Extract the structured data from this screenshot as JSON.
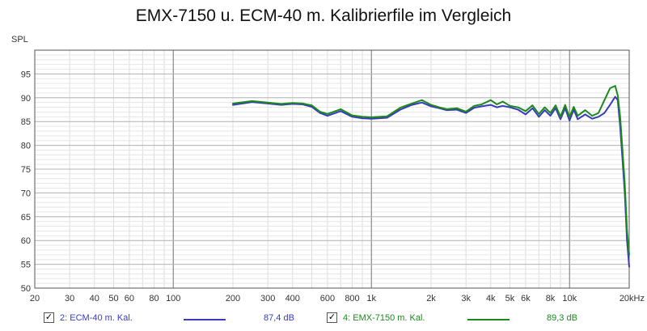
{
  "title": "EMX-7150 u. ECM-40 m. Kalibrierfile im Vergleich",
  "chart_data": {
    "type": "line",
    "title": "EMX-7150 u. ECM-40 m. Kalibrierfile im Vergleich",
    "xlabel": "",
    "ylabel": "SPL",
    "x_scale": "log",
    "xlim": [
      20,
      20000
    ],
    "ylim": [
      50,
      100
    ],
    "grid": true,
    "legend_position": "bottom",
    "x_ticks": [
      20,
      30,
      40,
      50,
      60,
      80,
      100,
      200,
      300,
      400,
      600,
      800,
      1000,
      2000,
      3000,
      4000,
      5000,
      6000,
      8000,
      10000,
      20000
    ],
    "x_tick_labels": [
      "20",
      "30",
      "40",
      "50",
      "60",
      "80",
      "100",
      "200",
      "300",
      "400",
      "600",
      "800",
      "1k",
      "2k",
      "3k",
      "4k",
      "5k",
      "6k",
      "8k",
      "10k",
      "20kHz"
    ],
    "y_ticks": [
      50,
      55,
      60,
      65,
      70,
      75,
      80,
      85,
      90,
      95
    ],
    "y_tick_labels": [
      "50",
      "55",
      "60",
      "65",
      "70",
      "75",
      "80",
      "85",
      "90",
      "95"
    ],
    "series": [
      {
        "name": "2: ECM-40 m. Kal.",
        "legend_label": "2: ECM-40 m. Kal.",
        "value_label": "87,4 dB",
        "color": "#3a3ac0",
        "x": [
          200,
          250,
          300,
          350,
          400,
          450,
          500,
          550,
          600,
          700,
          800,
          900,
          1000,
          1200,
          1400,
          1600,
          1800,
          2000,
          2200,
          2400,
          2700,
          3000,
          3300,
          3600,
          4000,
          4300,
          4600,
          5000,
          5500,
          6000,
          6500,
          7000,
          7500,
          8000,
          8500,
          9000,
          9500,
          10000,
          10500,
          11000,
          12000,
          13000,
          14000,
          15000,
          16000,
          17000,
          17500,
          18000,
          18500,
          19000,
          19500,
          20000
        ],
        "y": [
          88.5,
          89.1,
          88.8,
          88.5,
          88.7,
          88.6,
          88.1,
          86.8,
          86.2,
          87.2,
          86.0,
          85.7,
          85.6,
          85.8,
          87.5,
          88.5,
          89.0,
          88.2,
          87.8,
          87.4,
          87.5,
          86.8,
          87.9,
          88.2,
          88.5,
          88.0,
          88.3,
          88.0,
          87.5,
          86.5,
          87.8,
          86.0,
          87.4,
          86.2,
          87.8,
          85.5,
          87.8,
          85.2,
          87.5,
          85.5,
          86.5,
          85.6,
          86.0,
          86.8,
          88.5,
          90.2,
          89.5,
          84.0,
          77.0,
          70.0,
          60.0,
          54.5
        ]
      },
      {
        "name": "4: EMX-7150 m. Kal.",
        "legend_label": "4: EMX-7150 m. Kal.",
        "value_label": "89,3 dB",
        "color": "#1a8a1a",
        "x": [
          200,
          250,
          300,
          350,
          400,
          450,
          500,
          550,
          600,
          700,
          800,
          900,
          1000,
          1200,
          1400,
          1600,
          1800,
          2000,
          2200,
          2400,
          2700,
          3000,
          3300,
          3600,
          4000,
          4300,
          4600,
          5000,
          5500,
          6000,
          6500,
          7000,
          7500,
          8000,
          8500,
          9000,
          9500,
          10000,
          10500,
          11000,
          12000,
          13000,
          14000,
          15000,
          16000,
          17000,
          17500,
          18000,
          18500,
          19000,
          19500,
          20000
        ],
        "y": [
          88.8,
          89.3,
          89.0,
          88.7,
          88.9,
          88.8,
          88.4,
          87.1,
          86.6,
          87.6,
          86.3,
          86.0,
          85.9,
          86.1,
          87.9,
          88.8,
          89.5,
          88.5,
          88.0,
          87.6,
          87.8,
          87.1,
          88.3,
          88.6,
          89.5,
          88.6,
          89.2,
          88.3,
          88.0,
          87.2,
          88.4,
          86.6,
          88.0,
          86.8,
          88.4,
          86.0,
          88.5,
          85.9,
          88.1,
          86.2,
          87.4,
          86.2,
          86.8,
          89.5,
          92.0,
          92.5,
          90.5,
          86.0,
          79.0,
          72.0,
          62.0,
          57.0
        ]
      }
    ]
  }
}
